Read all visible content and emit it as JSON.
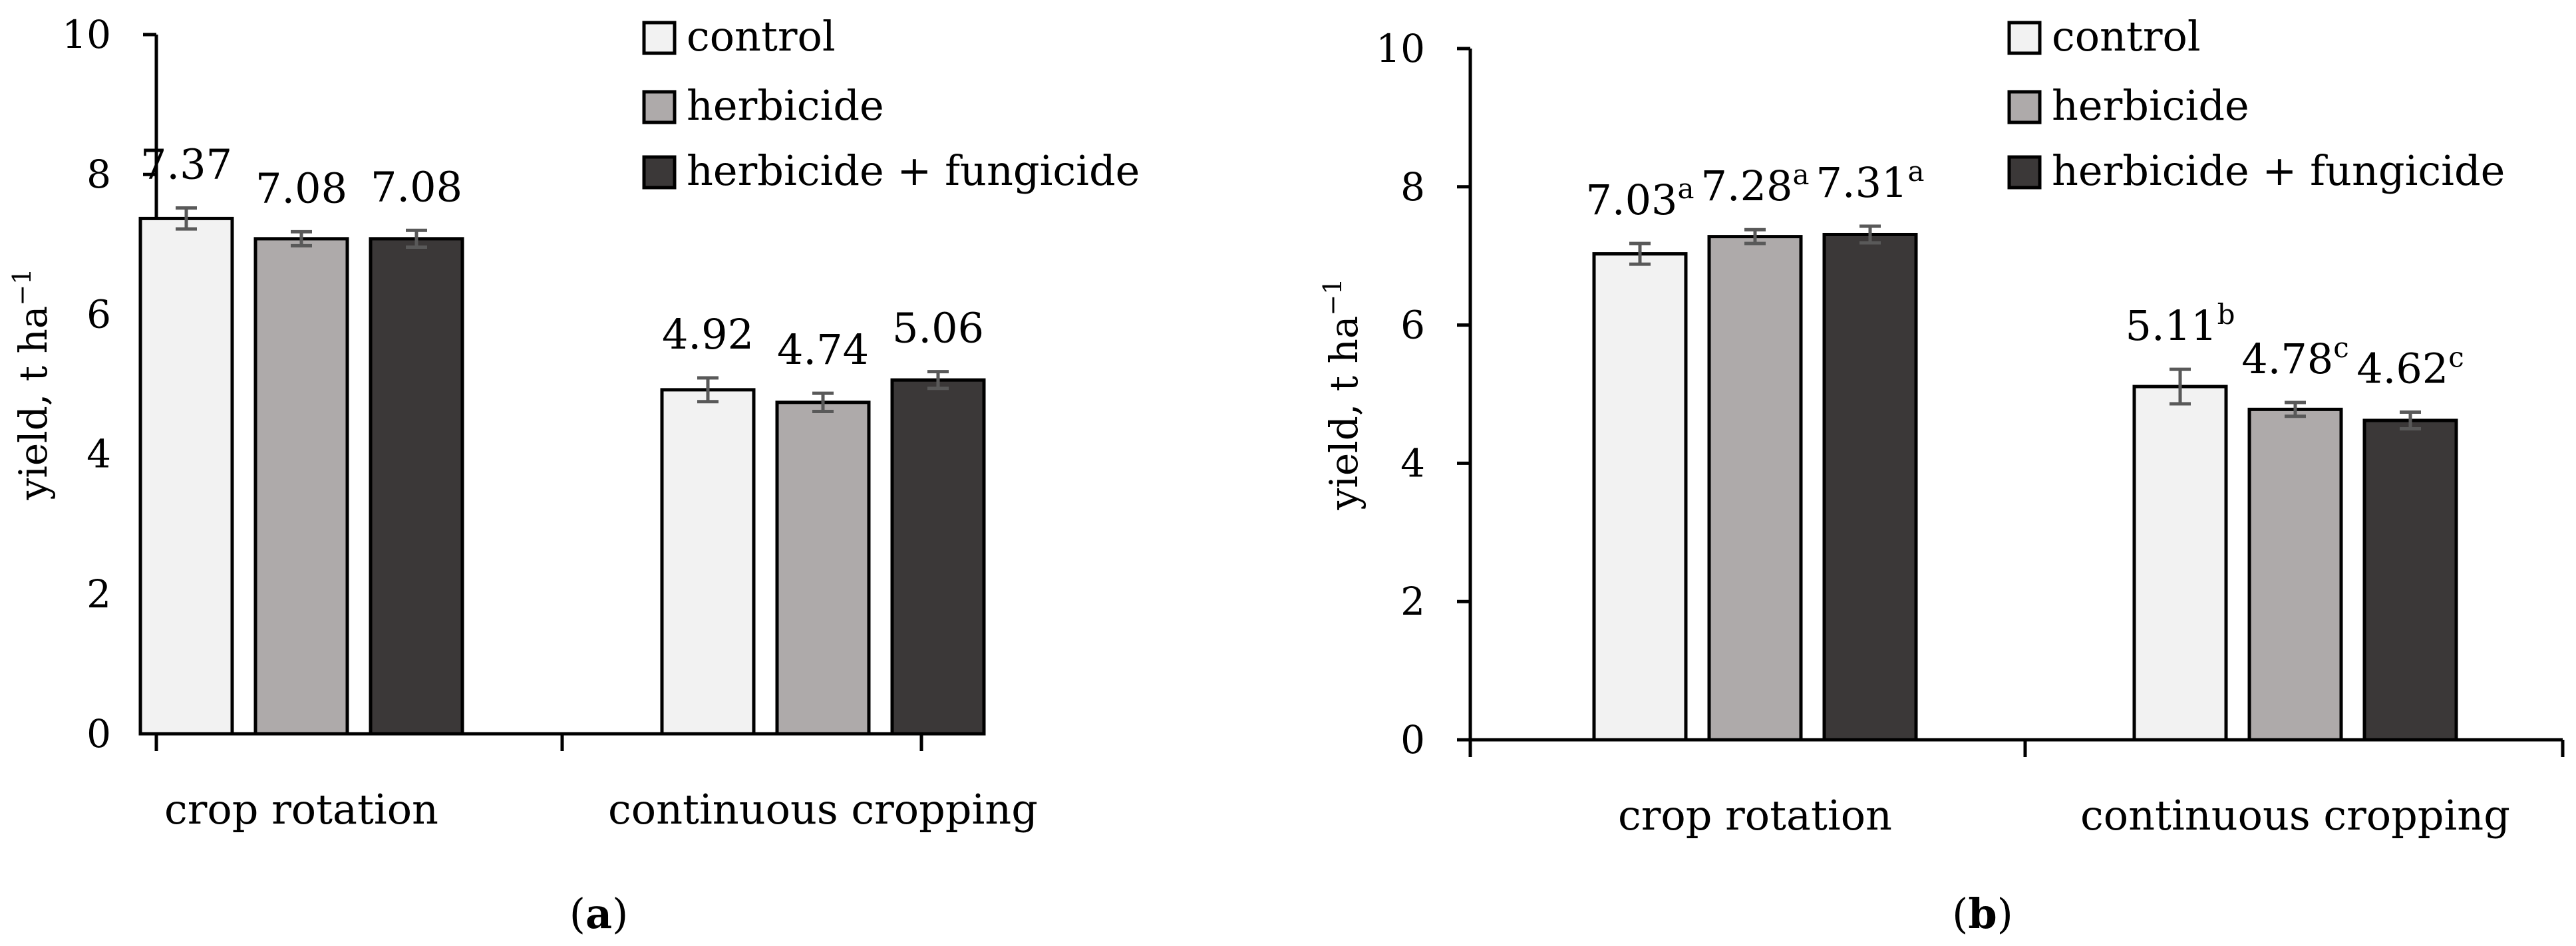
{
  "chart_data": [
    {
      "type": "bar",
      "panel_label": "a",
      "categories": [
        "crop rotation",
        "continuous cropping"
      ],
      "ylabel": "yield, t ha",
      "ylabel_sup": "−1",
      "ylim": [
        0,
        10
      ],
      "yticks": [
        "0",
        "2",
        "4",
        "6",
        "8",
        "10"
      ],
      "legend_position": "top-right",
      "error_bars": true,
      "series": [
        {
          "name": "control",
          "color": "#f2f2f2",
          "values": [
            7.37,
            4.92
          ],
          "labels": [
            "7.37",
            "4.92"
          ],
          "errors": [
            0.15,
            0.17
          ]
        },
        {
          "name": "herbicide",
          "color": "#aeaaaa",
          "values": [
            7.08,
            4.74
          ],
          "labels": [
            "7.08",
            "4.74"
          ],
          "errors": [
            0.1,
            0.13
          ]
        },
        {
          "name": "herbicide + fungicide",
          "color": "#3b3838",
          "values": [
            7.08,
            5.06
          ],
          "labels": [
            "7.08",
            "5.06"
          ],
          "errors": [
            0.12,
            0.12
          ]
        }
      ]
    },
    {
      "type": "bar",
      "panel_label": "b",
      "categories": [
        "crop rotation",
        "continuous cropping"
      ],
      "ylabel": "yield, t ha",
      "ylabel_sup": "−1",
      "ylim": [
        0,
        10
      ],
      "yticks": [
        "0",
        "2",
        "4",
        "6",
        "8",
        "10"
      ],
      "legend_position": "top-right",
      "error_bars": true,
      "series": [
        {
          "name": "control",
          "color": "#f2f2f2",
          "values": [
            7.03,
            5.11
          ],
          "labels": [
            "7.03",
            "5.11"
          ],
          "letters": [
            "a",
            "b"
          ],
          "errors": [
            0.15,
            0.25
          ]
        },
        {
          "name": "herbicide",
          "color": "#aeaaaa",
          "values": [
            7.28,
            4.78
          ],
          "labels": [
            "7.28",
            "4.78"
          ],
          "letters": [
            "a",
            "c"
          ],
          "errors": [
            0.1,
            0.1
          ]
        },
        {
          "name": "herbicide + fungicide",
          "color": "#3b3838",
          "values": [
            7.31,
            4.62
          ],
          "labels": [
            "7.31",
            "4.62"
          ],
          "letters": [
            "a",
            "c"
          ],
          "errors": [
            0.12,
            0.12
          ]
        }
      ]
    }
  ]
}
